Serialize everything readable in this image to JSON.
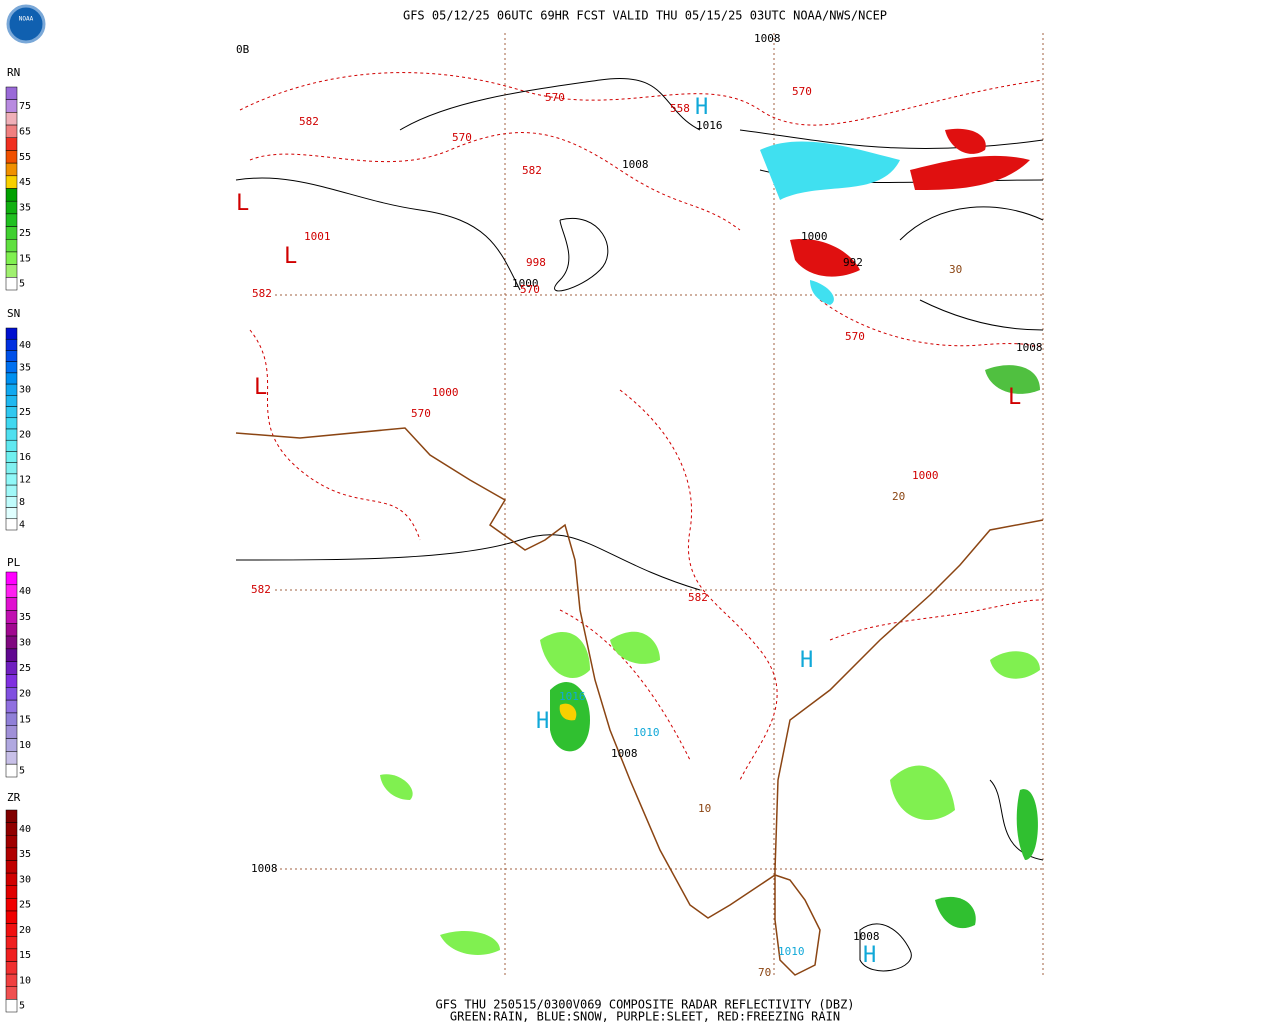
{
  "header": {
    "logo": "NOAA",
    "title": "GFS 05/12/25 06UTC 69HR FCST VALID THU 05/15/25 03UTC NOAA/NWS/NCEP"
  },
  "legends": [
    {
      "label": "RN",
      "ticks": [
        75,
        65,
        55,
        45,
        35,
        25,
        15,
        5
      ],
      "colors": [
        "#9a6ad8",
        "#b88ae0",
        "#f0b0b8",
        "#f08080",
        "#f03020",
        "#f05000",
        "#f09000",
        "#f8d000",
        "#00a000",
        "#10b010",
        "#20c020",
        "#40d030",
        "#60e040",
        "#80f050",
        "#a0f070",
        "#ffffff"
      ]
    },
    {
      "label": "SN",
      "ticks": [
        40,
        35,
        30,
        25,
        20,
        16,
        12,
        8,
        4
      ],
      "colors": [
        "#0010d0",
        "#0030e0",
        "#0050e8",
        "#0070f0",
        "#0090f0",
        "#10a8f0",
        "#20b8f0",
        "#30c8f0",
        "#40d8f0",
        "#50e0f0",
        "#60e8f0",
        "#70f0f0",
        "#80f0f0",
        "#90f8f8",
        "#a0f8f8",
        "#c0fcfc",
        "#e0ffff",
        "#ffffff"
      ]
    },
    {
      "label": "PL",
      "ticks": [
        40,
        35,
        30,
        25,
        20,
        15,
        10,
        5
      ],
      "colors": [
        "#ff00ff",
        "#ff20f0",
        "#e010d0",
        "#c010b0",
        "#a00890",
        "#800880",
        "#600890",
        "#7020c0",
        "#8030e0",
        "#8050e0",
        "#9070e0",
        "#9080d8",
        "#a090d8",
        "#b0a8e0",
        "#c8c0e8",
        "#ffffff"
      ]
    },
    {
      "label": "ZR",
      "ticks": [
        40,
        35,
        30,
        25,
        20,
        15,
        10,
        5
      ],
      "colors": [
        "#800000",
        "#900000",
        "#a00000",
        "#b00000",
        "#c00000",
        "#d00000",
        "#e00000",
        "#f00000",
        "#f00000",
        "#f01010",
        "#f02020",
        "#f02020",
        "#f03030",
        "#f04040",
        "#f05050",
        "#ffffff"
      ]
    }
  ],
  "map_labels": [
    {
      "text": "0B",
      "color": "#000000"
    },
    {
      "text": "1008",
      "color": "#000000"
    },
    {
      "text": "570",
      "color": "#d00000"
    },
    {
      "text": "558",
      "color": "#d00000"
    },
    {
      "text": "H",
      "color": "#10a8d8"
    },
    {
      "text": "1016",
      "color": "#000000"
    },
    {
      "text": "570",
      "color": "#d00000"
    },
    {
      "text": "582",
      "color": "#d00000"
    },
    {
      "text": "570",
      "color": "#d00000"
    },
    {
      "text": "1008",
      "color": "#000000"
    },
    {
      "text": "582",
      "color": "#d00000"
    },
    {
      "text": "L",
      "color": "#d00000"
    },
    {
      "text": "1001",
      "color": "#d00000"
    },
    {
      "text": "L",
      "color": "#d00000"
    },
    {
      "text": "998",
      "color": "#d00000"
    },
    {
      "text": "1000",
      "color": "#000000"
    },
    {
      "text": "570",
      "color": "#d00000"
    },
    {
      "text": "1000",
      "color": "#000000"
    },
    {
      "text": "992",
      "color": "#000000"
    },
    {
      "text": "30",
      "color": "#8b4513"
    },
    {
      "text": "582",
      "color": "#d00000"
    },
    {
      "text": "L",
      "color": "#d00000"
    },
    {
      "text": "1000",
      "color": "#d00000"
    },
    {
      "text": "570",
      "color": "#d00000"
    },
    {
      "text": "570",
      "color": "#d00000"
    },
    {
      "text": "1008",
      "color": "#000000"
    },
    {
      "text": "L",
      "color": "#d00000"
    },
    {
      "text": "1000",
      "color": "#d00000"
    },
    {
      "text": "20",
      "color": "#8b4513"
    },
    {
      "text": "582",
      "color": "#d00000"
    },
    {
      "text": "582",
      "color": "#d00000"
    },
    {
      "text": "H",
      "color": "#10a8d8"
    },
    {
      "text": "1016",
      "color": "#10a8d8"
    },
    {
      "text": "H",
      "color": "#10a8d8"
    },
    {
      "text": "1010",
      "color": "#10a8d8"
    },
    {
      "text": "1008",
      "color": "#000000"
    },
    {
      "text": "10",
      "color": "#8b4513"
    },
    {
      "text": "1008",
      "color": "#000000"
    },
    {
      "text": "1008",
      "color": "#000000"
    },
    {
      "text": "H",
      "color": "#10a8d8"
    },
    {
      "text": "1010",
      "color": "#10a8d8"
    },
    {
      "text": "70",
      "color": "#8b4513"
    }
  ],
  "footer": {
    "line1": "GFS THU 250515/0300V069 COMPOSITE RADAR REFLECTIVITY (DBZ)",
    "line2": "GREEN:RAIN, BLUE:SNOW, PURPLE:SLEET, RED:FREEZING RAIN"
  }
}
